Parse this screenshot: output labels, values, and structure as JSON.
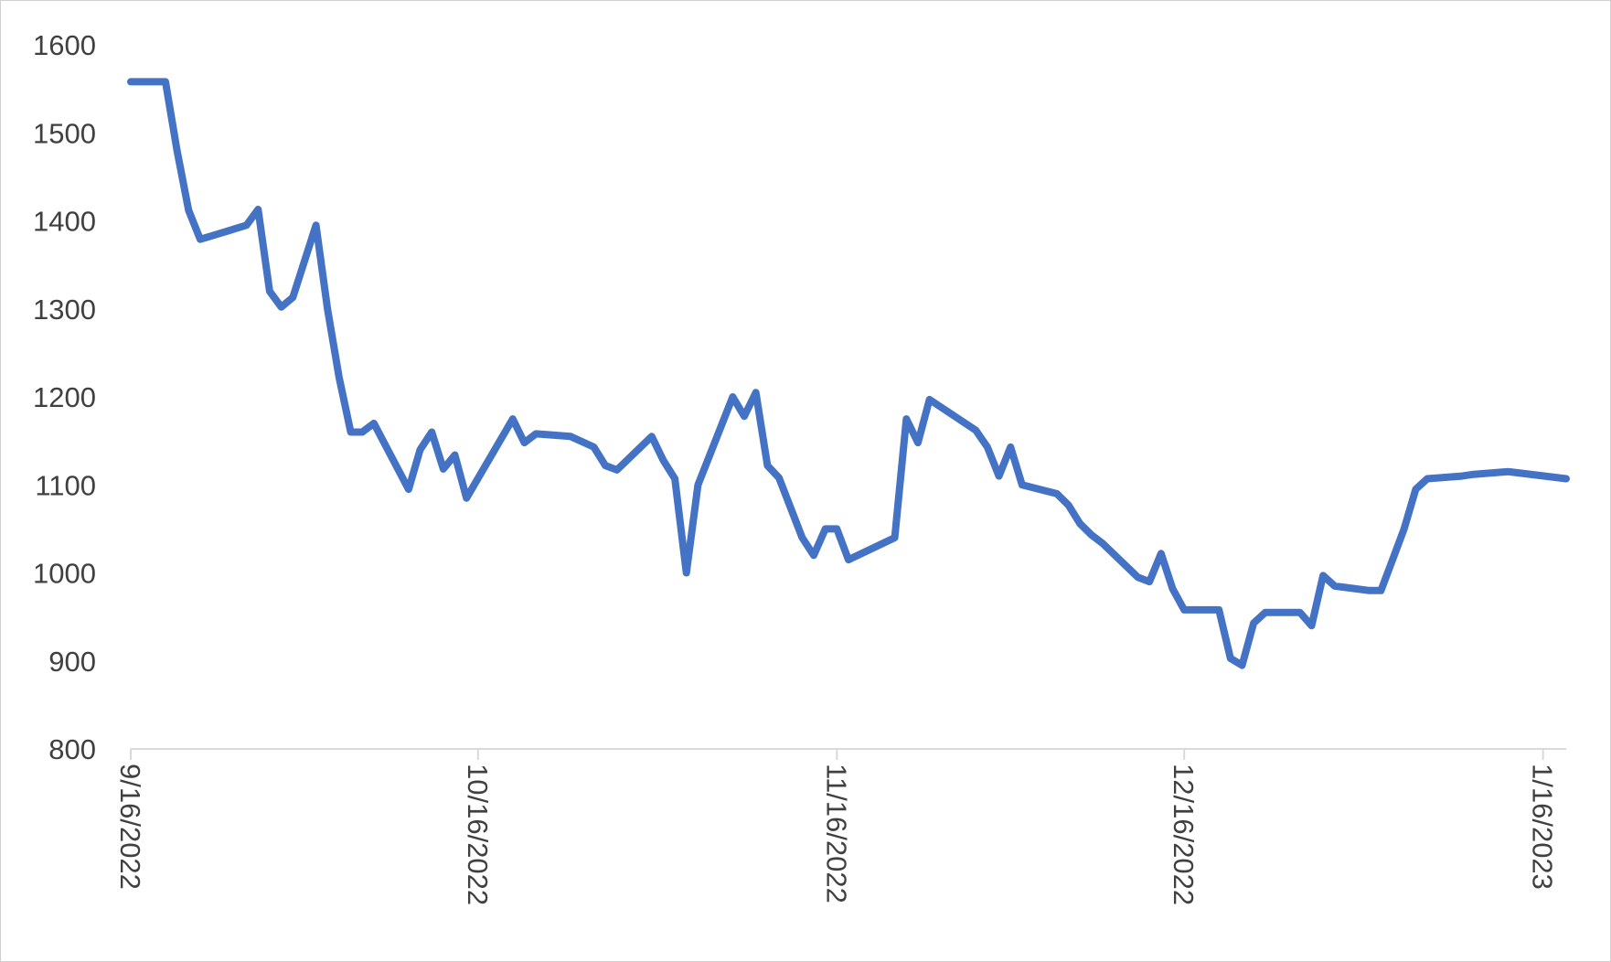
{
  "chart_data": {
    "type": "line",
    "title": "",
    "xlabel": "",
    "ylabel": "",
    "ylim": [
      800,
      1600
    ],
    "y_ticks": [
      800,
      900,
      1000,
      1100,
      1200,
      1300,
      1400,
      1500,
      1600
    ],
    "x_ticks": [
      "9/16/2022",
      "10/16/2022",
      "11/16/2022",
      "12/16/2022",
      "1/16/2023"
    ],
    "x_range": [
      "2022-09-16",
      "2023-01-18"
    ],
    "grid": false,
    "legend": "none",
    "line_color": "#4472c4",
    "series": [
      {
        "x": [
          "2022-09-16",
          "2022-09-19",
          "2022-09-20",
          "2022-09-21",
          "2022-09-22",
          "2022-09-23",
          "2022-09-26",
          "2022-09-27",
          "2022-09-28",
          "2022-09-29",
          "2022-09-30",
          "2022-10-02",
          "2022-10-03",
          "2022-10-04",
          "2022-10-05",
          "2022-10-06",
          "2022-10-07",
          "2022-10-10",
          "2022-10-11",
          "2022-10-12",
          "2022-10-13",
          "2022-10-14",
          "2022-10-15",
          "2022-10-19",
          "2022-10-20",
          "2022-10-21",
          "2022-10-24",
          "2022-10-26",
          "2022-10-27",
          "2022-10-28",
          "2022-10-31",
          "2022-11-01",
          "2022-11-02",
          "2022-11-03",
          "2022-11-04",
          "2022-11-07",
          "2022-11-08",
          "2022-11-09",
          "2022-11-10",
          "2022-11-11",
          "2022-11-13",
          "2022-11-14",
          "2022-11-15",
          "2022-11-16",
          "2022-11-17",
          "2022-11-21",
          "2022-11-22",
          "2022-11-23",
          "2022-11-24",
          "2022-11-28",
          "2022-11-29",
          "2022-11-30",
          "2022-12-01",
          "2022-12-02",
          "2022-12-05",
          "2022-12-06",
          "2022-12-07",
          "2022-12-08",
          "2022-12-09",
          "2022-12-12",
          "2022-12-13",
          "2022-12-14",
          "2022-12-15",
          "2022-12-16",
          "2022-12-19",
          "2022-12-20",
          "2022-12-21",
          "2022-12-22",
          "2022-12-23",
          "2022-12-26",
          "2022-12-27",
          "2022-12-28",
          "2022-12-29",
          "2023-01-01",
          "2023-01-02",
          "2023-01-03",
          "2023-01-04",
          "2023-01-05",
          "2023-01-06",
          "2023-01-09",
          "2023-01-10",
          "2023-01-11",
          "2023-01-12",
          "2023-01-13",
          "2023-01-18"
        ],
        "values": [
          1558,
          1558,
          1480,
          1412,
          1379,
          1383,
          1395,
          1413,
          1320,
          1302,
          1313,
          1395,
          1300,
          1222,
          1160,
          1160,
          1170,
          1095,
          1140,
          1160,
          1118,
          1134,
          1085,
          1175,
          1148,
          1158,
          1155,
          1143,
          1122,
          1117,
          1155,
          1128,
          1107,
          1000,
          1100,
          1200,
          1178,
          1205,
          1122,
          1108,
          1040,
          1020,
          1050,
          1050,
          1015,
          1040,
          1175,
          1148,
          1197,
          1162,
          1143,
          1110,
          1143,
          1100,
          1090,
          1077,
          1056,
          1043,
          1033,
          995,
          990,
          1022,
          982,
          958,
          958,
          903,
          895,
          943,
          955,
          955,
          940,
          997,
          985,
          980,
          980,
          1015,
          1050,
          1095,
          1107,
          1110,
          1112,
          1113,
          1114,
          1115,
          1107
        ]
      }
    ]
  }
}
